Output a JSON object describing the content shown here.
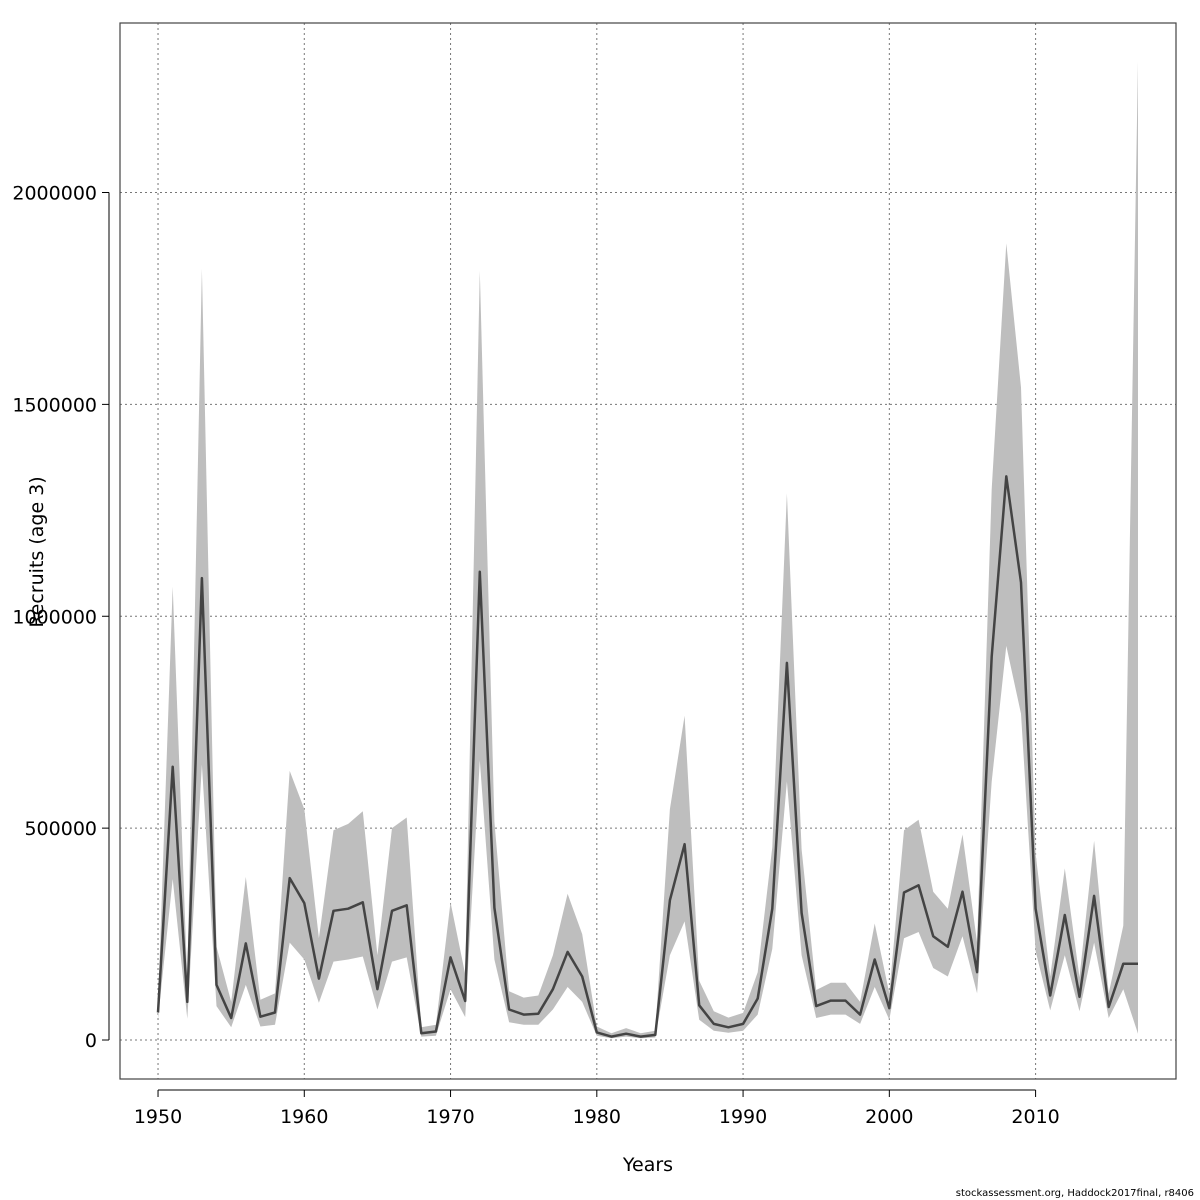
{
  "chart_data": {
    "type": "line",
    "xlabel": "Years",
    "ylabel": "Recruits (age 3)",
    "xlim": [
      1947.4,
      2019.6
    ],
    "ylim": [
      -92000,
      2400000
    ],
    "xticks": [
      1950,
      1960,
      1970,
      1980,
      1990,
      2000,
      2010
    ],
    "yticks": [
      0,
      500000,
      1000000,
      1500000,
      2000000
    ],
    "grid": true,
    "colors": {
      "line": "#444444",
      "band": "#bebebe",
      "grid": "#777777"
    },
    "x": [
      1950,
      1951,
      1952,
      1953,
      1954,
      1955,
      1956,
      1957,
      1958,
      1959,
      1960,
      1961,
      1962,
      1963,
      1964,
      1965,
      1966,
      1967,
      1968,
      1969,
      1970,
      1971,
      1972,
      1973,
      1974,
      1975,
      1976,
      1977,
      1978,
      1979,
      1980,
      1981,
      1982,
      1983,
      1984,
      1985,
      1986,
      1987,
      1988,
      1989,
      1990,
      1991,
      1992,
      1993,
      1994,
      1995,
      1996,
      1997,
      1998,
      1999,
      2000,
      2001,
      2002,
      2003,
      2004,
      2005,
      2006,
      2007,
      2008,
      2009,
      2010,
      2011,
      2012,
      2013,
      2014,
      2015,
      2016,
      2017
    ],
    "series": [
      {
        "role": "estimate",
        "values": [
          65000,
          645000,
          90000,
          1090000,
          130000,
          52000,
          228000,
          55000,
          65000,
          382000,
          323000,
          145000,
          305000,
          310000,
          325000,
          120000,
          305000,
          318000,
          16000,
          20000,
          195000,
          92000,
          1105000,
          312000,
          72000,
          60000,
          62000,
          120000,
          208000,
          150000,
          18000,
          8000,
          15000,
          8000,
          12000,
          330000,
          462000,
          82000,
          38000,
          30000,
          38000,
          98000,
          310000,
          890000,
          300000,
          80000,
          93000,
          93000,
          60000,
          190000,
          75000,
          348000,
          365000,
          245000,
          220000,
          350000,
          160000,
          905000,
          1330000,
          1080000,
          310000,
          105000,
          295000,
          102000,
          340000,
          78000,
          180000,
          180000
        ]
      },
      {
        "role": "lower",
        "values": [
          50000,
          380000,
          50000,
          650000,
          80000,
          30000,
          130000,
          32000,
          36000,
          230000,
          190000,
          88000,
          185000,
          190000,
          197000,
          72000,
          185000,
          195000,
          8000,
          10000,
          120000,
          54000,
          660000,
          190000,
          42000,
          36000,
          36000,
          72000,
          125000,
          90000,
          10000,
          4000,
          8000,
          4000,
          6000,
          200000,
          280000,
          48000,
          22000,
          17000,
          22000,
          60000,
          215000,
          610000,
          200000,
          52000,
          60000,
          60000,
          38000,
          125000,
          48000,
          240000,
          255000,
          170000,
          150000,
          245000,
          110000,
          610000,
          930000,
          770000,
          210000,
          70000,
          200000,
          68000,
          230000,
          52000,
          120000,
          15000
        ]
      },
      {
        "role": "upper",
        "values": [
          80000,
          1070000,
          140000,
          1820000,
          220000,
          90000,
          385000,
          95000,
          110000,
          635000,
          545000,
          240000,
          495000,
          510000,
          540000,
          200000,
          500000,
          525000,
          30000,
          36000,
          325000,
          155000,
          1815000,
          515000,
          115000,
          100000,
          105000,
          200000,
          345000,
          250000,
          32000,
          16000,
          28000,
          16000,
          22000,
          545000,
          765000,
          140000,
          68000,
          53000,
          64000,
          160000,
          455000,
          1290000,
          450000,
          118000,
          135000,
          135000,
          90000,
          275000,
          110000,
          495000,
          520000,
          350000,
          310000,
          485000,
          230000,
          1300000,
          1880000,
          1540000,
          440000,
          150000,
          405000,
          148000,
          470000,
          110000,
          270000,
          2310000
        ]
      }
    ]
  },
  "footer": {
    "credit": "stockassessment.org, Haddock2017final, r8406"
  }
}
